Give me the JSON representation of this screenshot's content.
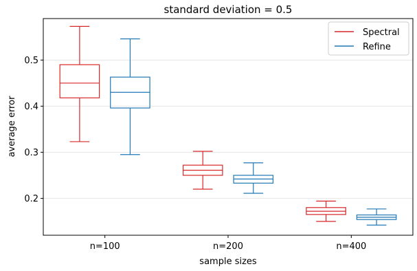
{
  "chart_data": {
    "type": "box",
    "title": "standard deviation = 0.5",
    "xlabel": "sample sizes",
    "ylabel": "average error",
    "categories": [
      "n=100",
      "n=200",
      "n=400"
    ],
    "ylim": [
      0.12,
      0.59
    ],
    "yticks": [
      0.2,
      0.3,
      0.4,
      0.5
    ],
    "grid": "horizontal",
    "legend_position": "top-right",
    "series": [
      {
        "name": "Spectral",
        "color": "#d62728",
        "boxes": [
          {
            "whislo": 0.323,
            "q1": 0.418,
            "med": 0.45,
            "q3": 0.49,
            "whishi": 0.573
          },
          {
            "whislo": 0.22,
            "q1": 0.25,
            "med": 0.261,
            "q3": 0.272,
            "whishi": 0.302
          },
          {
            "whislo": 0.15,
            "q1": 0.165,
            "med": 0.172,
            "q3": 0.18,
            "whishi": 0.194
          }
        ]
      },
      {
        "name": "Refine",
        "color": "#1f77b4",
        "boxes": [
          {
            "whislo": 0.295,
            "q1": 0.396,
            "med": 0.43,
            "q3": 0.463,
            "whishi": 0.546
          },
          {
            "whislo": 0.211,
            "q1": 0.233,
            "med": 0.242,
            "q3": 0.25,
            "whishi": 0.277
          },
          {
            "whislo": 0.142,
            "q1": 0.154,
            "med": 0.159,
            "q3": 0.164,
            "whishi": 0.177
          }
        ]
      }
    ]
  }
}
